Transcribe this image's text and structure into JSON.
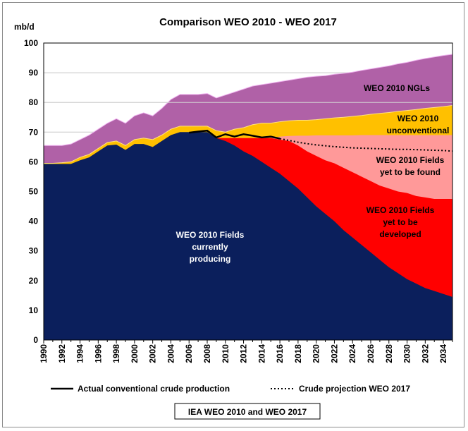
{
  "chart_data": {
    "type": "area",
    "title": "Comparison WEO 2010 - WEO 2017",
    "unit_label": "mb/d",
    "ylim": [
      0,
      100
    ],
    "y_ticks": [
      0,
      10,
      20,
      30,
      40,
      50,
      60,
      70,
      80,
      90,
      100
    ],
    "xlim": [
      1990,
      2035
    ],
    "x_tick_labels": [
      "1990",
      "1992",
      "1994",
      "1996",
      "1998",
      "2000",
      "2002",
      "2004",
      "2006",
      "2008",
      "2010",
      "2012",
      "2014",
      "2016",
      "2018",
      "2020",
      "2022",
      "2024",
      "2026",
      "2028",
      "2030",
      "2032",
      "2034"
    ],
    "reference_line": {
      "y": 80,
      "color": "#d3d3d3"
    },
    "grid": true,
    "colors": {
      "producing": "#0b1f5c",
      "developed": "#ff0000",
      "found": "#ff9999",
      "unconventional": "#ffc000",
      "ngls": "#b061a7",
      "ngls_edge": "#f0b4f0",
      "actual": "#000000",
      "projection": "#000000"
    },
    "series": [
      {
        "key": "producing",
        "name": "WEO 2010 Fields currently producing",
        "x": [
          1990,
          1991,
          1992,
          1993,
          1994,
          1995,
          1996,
          1997,
          1998,
          1999,
          2000,
          2001,
          2002,
          2003,
          2004,
          2005,
          2006,
          2007,
          2008,
          2009,
          2010,
          2011,
          2012,
          2013,
          2014,
          2015,
          2016,
          2017,
          2018,
          2019,
          2020,
          2021,
          2022,
          2023,
          2024,
          2025,
          2026,
          2027,
          2028,
          2029,
          2030,
          2031,
          2032,
          2033,
          2034,
          2035
        ],
        "values": [
          59.3,
          59.3,
          59.3,
          59.3,
          60.5,
          61.5,
          63.5,
          65.5,
          65.8,
          64,
          66,
          66,
          65,
          67,
          69,
          70,
          70,
          70,
          70,
          68,
          67,
          65.5,
          63.5,
          62,
          60,
          58,
          56,
          53.5,
          51,
          48,
          45,
          42.5,
          40,
          37,
          34.5,
          32,
          29.5,
          27,
          24.5,
          22.5,
          20.5,
          19,
          17.5,
          16.5,
          15.5,
          14.5
        ]
      },
      {
        "key": "developed",
        "name": "WEO 2010 Fields yet to be developed",
        "x": [
          2009,
          2010,
          2011,
          2012,
          2013,
          2014,
          2015,
          2016,
          2017,
          2018,
          2019,
          2020,
          2021,
          2022,
          2023,
          2024,
          2025,
          2026,
          2027,
          2028,
          2029,
          2030,
          2031,
          2032,
          2033,
          2034,
          2035
        ],
        "values": [
          68,
          68,
          68,
          68,
          68,
          68,
          68,
          67.5,
          67,
          65.5,
          63.5,
          62,
          60.5,
          59.5,
          58,
          56.5,
          55,
          53.5,
          52,
          51,
          50,
          49.5,
          48.5,
          48,
          47.5,
          47.5,
          47.5
        ]
      },
      {
        "key": "found",
        "name": "WEO 2010 Fields yet to be found",
        "x": [
          2009,
          2010,
          2011,
          2012,
          2013,
          2014,
          2015,
          2016,
          2017,
          2018,
          2019,
          2020,
          2021,
          2022,
          2023,
          2024,
          2025,
          2026,
          2027,
          2028,
          2029,
          2030,
          2031,
          2032,
          2033,
          2034,
          2035
        ],
        "values": [
          68,
          68,
          68,
          68,
          68,
          68,
          68,
          68.5,
          68.7,
          68.8,
          68.8,
          68.9,
          68.9,
          68.9,
          68.9,
          68.9,
          69,
          69,
          69,
          69,
          69,
          69,
          69,
          69,
          69,
          69,
          69
        ]
      },
      {
        "key": "unconventional",
        "name": "WEO 2010 unconventional",
        "x": [
          1990,
          1991,
          1992,
          1993,
          1994,
          1995,
          1996,
          1997,
          1998,
          1999,
          2000,
          2001,
          2002,
          2003,
          2004,
          2005,
          2006,
          2007,
          2008,
          2009,
          2010,
          2011,
          2012,
          2013,
          2014,
          2015,
          2016,
          2017,
          2018,
          2019,
          2020,
          2021,
          2022,
          2023,
          2024,
          2025,
          2026,
          2027,
          2028,
          2029,
          2030,
          2031,
          2032,
          2033,
          2034,
          2035
        ],
        "values": [
          59.5,
          59.5,
          59.7,
          60,
          61.5,
          62.5,
          64.5,
          66.5,
          67,
          65.5,
          67.5,
          68,
          67.5,
          69,
          71,
          72,
          72,
          72,
          72,
          70.5,
          70,
          71,
          71.5,
          72.5,
          73,
          73,
          73.5,
          73.8,
          74,
          74,
          74.2,
          74.5,
          74.8,
          75,
          75.3,
          75.6,
          76,
          76.3,
          76.6,
          77,
          77.3,
          77.6,
          78,
          78.3,
          78.6,
          79
        ]
      },
      {
        "key": "ngls",
        "name": "WEO 2010 NGLs",
        "x": [
          1990,
          1991,
          1992,
          1993,
          1994,
          1995,
          1996,
          1997,
          1998,
          1999,
          2000,
          2001,
          2002,
          2003,
          2004,
          2005,
          2006,
          2007,
          2008,
          2009,
          2010,
          2011,
          2012,
          2013,
          2014,
          2015,
          2016,
          2017,
          2018,
          2019,
          2020,
          2021,
          2022,
          2023,
          2024,
          2025,
          2026,
          2027,
          2028,
          2029,
          2030,
          2031,
          2032,
          2033,
          2034,
          2035
        ],
        "values": [
          65.5,
          65.5,
          65.5,
          66,
          67.5,
          69,
          71,
          73,
          74.5,
          73,
          75.5,
          76.5,
          75.5,
          78,
          81,
          82.7,
          82.7,
          82.7,
          83,
          81.5,
          82.5,
          83.5,
          84.5,
          85.5,
          86,
          86.5,
          87,
          87.5,
          88,
          88.5,
          88.8,
          89,
          89.5,
          89.8,
          90.2,
          90.8,
          91.3,
          91.8,
          92.3,
          93,
          93.5,
          94.2,
          94.8,
          95.3,
          95.8,
          96.2
        ]
      }
    ],
    "lines": [
      {
        "key": "actual",
        "name": "Actual conventional crude production",
        "style": "solid",
        "x": [
          2006,
          2007,
          2008,
          2009,
          2010,
          2011,
          2012,
          2013,
          2014,
          2015,
          2016
        ],
        "values": [
          69.8,
          70.2,
          70.5,
          68.2,
          69.3,
          68.5,
          69.3,
          68.8,
          68.2,
          68.5,
          67.8
        ]
      },
      {
        "key": "projection",
        "name": "Crude projection WEO 2017",
        "style": "dotted",
        "x": [
          2016,
          2017,
          2018,
          2019,
          2020,
          2021,
          2022,
          2023,
          2024,
          2025,
          2026,
          2027,
          2028,
          2029,
          2030,
          2031,
          2032,
          2033,
          2034,
          2035
        ],
        "values": [
          67.8,
          67.2,
          66.6,
          66.1,
          65.7,
          65.4,
          65.1,
          64.9,
          64.7,
          64.6,
          64.5,
          64.4,
          64.3,
          64.2,
          64.2,
          64.1,
          64,
          63.9,
          63.8,
          63.6
        ]
      }
    ],
    "annotations": [
      {
        "key": "ngls",
        "lines": [
          "WEO 2010 NGLs"
        ],
        "color": "#000000"
      },
      {
        "key": "unconv",
        "lines": [
          "WEO 2010",
          "unconventional"
        ],
        "color": "#000000"
      },
      {
        "key": "found",
        "lines": [
          "WEO 2010  Fields",
          "yet to be found"
        ],
        "color": "#000000"
      },
      {
        "key": "developed",
        "lines": [
          "WEO 2010 Fields",
          "yet to be",
          "developed"
        ],
        "color": "#000000"
      },
      {
        "key": "producing",
        "lines": [
          "WEO 2010 Fields",
          "currently",
          "producing"
        ],
        "color": "#ffffff"
      }
    ],
    "legend": [
      {
        "key": "actual",
        "label": "Actual conventional crude production",
        "style": "solid"
      },
      {
        "key": "projection",
        "label": "Crude projection WEO 2017",
        "style": "dotted"
      }
    ],
    "legend_position": "bottom",
    "source": "IEA WEO 2010 and WEO 2017"
  }
}
